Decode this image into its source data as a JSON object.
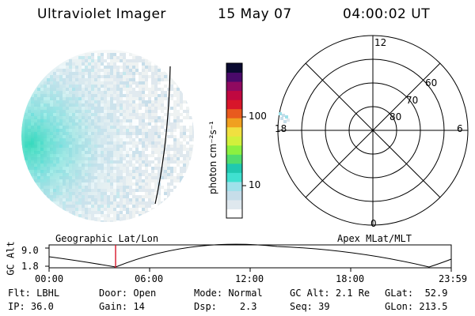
{
  "header": {
    "instrument": "Ultraviolet Imager",
    "date": "15 May 07",
    "time": "04:00:02 UT"
  },
  "colorbar": {
    "unit_label": "photon cm⁻²s⁻¹",
    "ticks": [
      "100",
      "10"
    ],
    "colors": [
      "#ffffff",
      "#dfe8ee",
      "#c6dde9",
      "#9fe1ea",
      "#40e0d0",
      "#20c8b0",
      "#50dc6e",
      "#8cf040",
      "#d2f03c",
      "#f0e040",
      "#f0a020",
      "#e85a1e",
      "#d8162a",
      "#c00840",
      "#900a60",
      "#4a0a6a",
      "#0a0a30"
    ]
  },
  "left_panel": {
    "label": "Geographic Lat/Lon"
  },
  "right_panel": {
    "label": "Apex MLat/MLT",
    "mlt_labels": {
      "top": "12",
      "right": "6",
      "bottom": "0",
      "left": "18"
    },
    "lat_labels": [
      "60",
      "70",
      "80"
    ]
  },
  "timeline": {
    "ylabel": "GC Alt",
    "yticks": [
      "9.0",
      "1.8"
    ],
    "xticks": [
      "00:00",
      "06:00",
      "12:00",
      "18:00",
      "23:59"
    ],
    "current_marker": "04:00"
  },
  "footer": {
    "rows": [
      [
        {
          "k": "Flt:",
          "v": "LBHL"
        },
        {
          "k": "Door:",
          "v": "Open"
        },
        {
          "k": "Mode:",
          "v": "Normal"
        },
        {
          "k": "GC Alt:",
          "v": "2.1 Re"
        },
        {
          "k": "GLat:",
          "v": "52.9"
        }
      ],
      [
        {
          "k": "IP:",
          "v": "36.0"
        },
        {
          "k": "Gain:",
          "v": "14"
        },
        {
          "k": "Dsp:",
          "v": "2.3"
        },
        {
          "k": "Seq:",
          "v": "39"
        },
        {
          "k": "GLon:",
          "v": "213.5"
        }
      ]
    ]
  }
}
